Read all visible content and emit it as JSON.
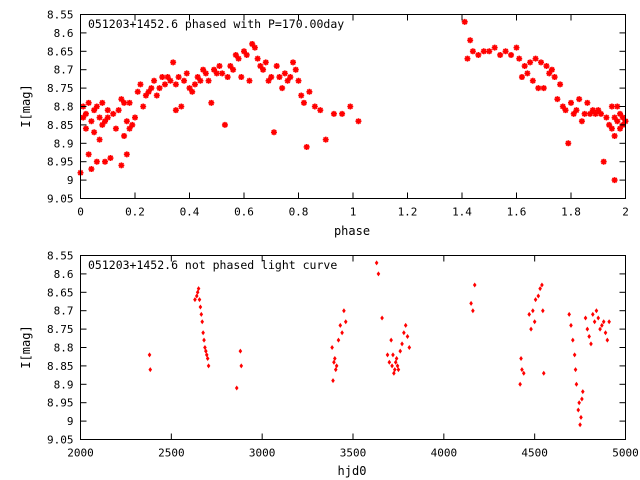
{
  "chart_data": [
    {
      "type": "scatter",
      "title": "051203+1452.6 phased with P=170.00day",
      "xlabel": "phase",
      "ylabel": "I[mag]",
      "xlim": [
        0,
        2
      ],
      "ylim": [
        9.05,
        8.55
      ],
      "y_inverted": true,
      "grid": false,
      "marker_color": "#ff0000",
      "xticks": [
        0,
        0.2,
        0.4,
        0.6,
        0.8,
        1,
        1.2,
        1.4,
        1.6,
        1.8,
        2
      ],
      "xtick_labels": [
        "0",
        "0.2",
        "0.4",
        "0.6",
        "0.8",
        "1",
        "1.2",
        "1.4",
        "1.6",
        "1.8",
        "2"
      ],
      "yticks": [
        8.55,
        8.6,
        8.65,
        8.7,
        8.75,
        8.8,
        8.85,
        8.9,
        8.95,
        9,
        9.05
      ],
      "ytick_labels": [
        "8.55",
        "8.6",
        "8.65",
        "8.7",
        "8.75",
        "8.8",
        "8.85",
        "8.9",
        "8.95",
        "9",
        "9.05"
      ],
      "points": [
        [
          0.0,
          8.98
        ],
        [
          0.01,
          8.8
        ],
        [
          0.01,
          8.83
        ],
        [
          0.02,
          8.86
        ],
        [
          0.02,
          8.82
        ],
        [
          0.03,
          8.93
        ],
        [
          0.03,
          8.79
        ],
        [
          0.04,
          8.84
        ],
        [
          0.04,
          8.97
        ],
        [
          0.05,
          8.81
        ],
        [
          0.05,
          8.87
        ],
        [
          0.06,
          8.95
        ],
        [
          0.06,
          8.8
        ],
        [
          0.07,
          8.83
        ],
        [
          0.07,
          8.89
        ],
        [
          0.08,
          8.85
        ],
        [
          0.08,
          8.79
        ],
        [
          0.09,
          8.84
        ],
        [
          0.09,
          8.95
        ],
        [
          0.1,
          8.83
        ],
        [
          0.1,
          8.81
        ],
        [
          0.11,
          8.94
        ],
        [
          0.12,
          8.82
        ],
        [
          0.13,
          8.86
        ],
        [
          0.14,
          8.81
        ],
        [
          0.15,
          8.96
        ],
        [
          0.15,
          8.78
        ],
        [
          0.16,
          8.88
        ],
        [
          0.16,
          8.79
        ],
        [
          0.17,
          8.93
        ],
        [
          0.17,
          8.84
        ],
        [
          0.18,
          8.86
        ],
        [
          0.18,
          8.79
        ],
        [
          0.19,
          8.85
        ],
        [
          0.2,
          8.83
        ],
        [
          0.21,
          8.76
        ],
        [
          0.22,
          8.74
        ],
        [
          0.23,
          8.8
        ],
        [
          0.24,
          8.77
        ],
        [
          0.25,
          8.76
        ],
        [
          0.26,
          8.75
        ],
        [
          0.27,
          8.73
        ],
        [
          0.28,
          8.77
        ],
        [
          0.29,
          8.75
        ],
        [
          0.3,
          8.72
        ],
        [
          0.31,
          8.74
        ],
        [
          0.32,
          8.72
        ],
        [
          0.33,
          8.73
        ],
        [
          0.34,
          8.68
        ],
        [
          0.35,
          8.74
        ],
        [
          0.35,
          8.81
        ],
        [
          0.36,
          8.72
        ],
        [
          0.37,
          8.8
        ],
        [
          0.38,
          8.73
        ],
        [
          0.39,
          8.71
        ],
        [
          0.4,
          8.75
        ],
        [
          0.41,
          8.76
        ],
        [
          0.42,
          8.74
        ],
        [
          0.43,
          8.72
        ],
        [
          0.44,
          8.73
        ],
        [
          0.45,
          8.7
        ],
        [
          0.46,
          8.71
        ],
        [
          0.47,
          8.73
        ],
        [
          0.48,
          8.79
        ],
        [
          0.49,
          8.7
        ],
        [
          0.5,
          8.71
        ],
        [
          0.51,
          8.69
        ],
        [
          0.52,
          8.71
        ],
        [
          0.53,
          8.85
        ],
        [
          0.54,
          8.72
        ],
        [
          0.55,
          8.69
        ],
        [
          0.56,
          8.7
        ],
        [
          0.57,
          8.66
        ],
        [
          0.58,
          8.67
        ],
        [
          0.59,
          8.72
        ],
        [
          0.6,
          8.65
        ],
        [
          0.61,
          8.66
        ],
        [
          0.62,
          8.73
        ],
        [
          0.63,
          8.63
        ],
        [
          0.64,
          8.64
        ],
        [
          0.65,
          8.67
        ],
        [
          0.66,
          8.69
        ],
        [
          0.67,
          8.7
        ],
        [
          0.68,
          8.68
        ],
        [
          0.69,
          8.73
        ],
        [
          0.7,
          8.72
        ],
        [
          0.71,
          8.87
        ],
        [
          0.72,
          8.69
        ],
        [
          0.73,
          8.72
        ],
        [
          0.74,
          8.75
        ],
        [
          0.75,
          8.71
        ],
        [
          0.76,
          8.73
        ],
        [
          0.77,
          8.72
        ],
        [
          0.78,
          8.68
        ],
        [
          0.79,
          8.7
        ],
        [
          0.8,
          8.73
        ],
        [
          0.81,
          8.77
        ],
        [
          0.82,
          8.79
        ],
        [
          0.83,
          8.91
        ],
        [
          0.84,
          8.76
        ],
        [
          0.86,
          8.8
        ],
        [
          0.88,
          8.81
        ],
        [
          0.9,
          8.89
        ],
        [
          0.93,
          8.82
        ],
        [
          0.96,
          8.82
        ],
        [
          0.99,
          8.8
        ],
        [
          1.02,
          8.84
        ],
        [
          1.41,
          8.57
        ],
        [
          1.42,
          8.67
        ],
        [
          1.43,
          8.62
        ],
        [
          1.44,
          8.65
        ],
        [
          1.46,
          8.66
        ],
        [
          1.48,
          8.65
        ],
        [
          1.5,
          8.65
        ],
        [
          1.52,
          8.64
        ],
        [
          1.54,
          8.66
        ],
        [
          1.56,
          8.65
        ],
        [
          1.58,
          8.66
        ],
        [
          1.6,
          8.64
        ],
        [
          1.61,
          8.67
        ],
        [
          1.62,
          8.72
        ],
        [
          1.63,
          8.69
        ],
        [
          1.64,
          8.71
        ],
        [
          1.65,
          8.68
        ],
        [
          1.66,
          8.73
        ],
        [
          1.67,
          8.67
        ],
        [
          1.68,
          8.75
        ],
        [
          1.69,
          8.68
        ],
        [
          1.7,
          8.75
        ],
        [
          1.71,
          8.69
        ],
        [
          1.72,
          8.71
        ],
        [
          1.73,
          8.7
        ],
        [
          1.74,
          8.72
        ],
        [
          1.75,
          8.78
        ],
        [
          1.76,
          8.74
        ],
        [
          1.77,
          8.8
        ],
        [
          1.78,
          8.81
        ],
        [
          1.79,
          8.9
        ],
        [
          1.8,
          8.79
        ],
        [
          1.81,
          8.82
        ],
        [
          1.82,
          8.81
        ],
        [
          1.83,
          8.78
        ],
        [
          1.84,
          8.84
        ],
        [
          1.85,
          8.82
        ],
        [
          1.86,
          8.79
        ],
        [
          1.87,
          8.82
        ],
        [
          1.88,
          8.81
        ],
        [
          1.89,
          8.82
        ],
        [
          1.9,
          8.81
        ],
        [
          1.91,
          8.82
        ],
        [
          1.92,
          8.95
        ],
        [
          1.93,
          8.83
        ],
        [
          1.94,
          8.85
        ],
        [
          1.95,
          8.8
        ],
        [
          1.95,
          8.86
        ],
        [
          1.96,
          8.83
        ],
        [
          1.96,
          8.88
        ],
        [
          1.96,
          9.0
        ],
        [
          1.97,
          8.84
        ],
        [
          1.97,
          8.8
        ],
        [
          1.98,
          8.86
        ],
        [
          1.98,
          8.82
        ],
        [
          1.99,
          8.83
        ],
        [
          1.99,
          8.85
        ],
        [
          2.0,
          8.84
        ]
      ]
    },
    {
      "type": "scatter",
      "title": "051203+1452.6 not phased light curve",
      "xlabel": "hjd0",
      "ylabel": "I[mag]",
      "xlim": [
        2000,
        5000
      ],
      "ylim": [
        9.05,
        8.55
      ],
      "y_inverted": true,
      "grid": false,
      "marker_color": "#ff0000",
      "xticks": [
        2000,
        2500,
        3000,
        3500,
        4000,
        4500,
        5000
      ],
      "xtick_labels": [
        "2000",
        "2500",
        "3000",
        "3500",
        "4000",
        "4500",
        "5000"
      ],
      "yticks": [
        8.55,
        8.6,
        8.65,
        8.7,
        8.75,
        8.8,
        8.85,
        8.9,
        8.95,
        9,
        9.05
      ],
      "ytick_labels": [
        "8.55",
        "8.6",
        "8.65",
        "8.7",
        "8.75",
        "8.8",
        "8.85",
        "8.9",
        "8.95",
        "9",
        "9.05"
      ],
      "points": [
        [
          2380,
          8.82
        ],
        [
          2384,
          8.86
        ],
        [
          2630,
          8.67
        ],
        [
          2640,
          8.66
        ],
        [
          2645,
          8.65
        ],
        [
          2650,
          8.64
        ],
        [
          2655,
          8.67
        ],
        [
          2660,
          8.69
        ],
        [
          2665,
          8.71
        ],
        [
          2670,
          8.73
        ],
        [
          2675,
          8.76
        ],
        [
          2680,
          8.78
        ],
        [
          2685,
          8.8
        ],
        [
          2690,
          8.81
        ],
        [
          2695,
          8.82
        ],
        [
          2700,
          8.83
        ],
        [
          2705,
          8.85
        ],
        [
          2860,
          8.91
        ],
        [
          2880,
          8.81
        ],
        [
          2885,
          8.85
        ],
        [
          3385,
          8.8
        ],
        [
          3390,
          8.89
        ],
        [
          3395,
          8.84
        ],
        [
          3400,
          8.83
        ],
        [
          3405,
          8.86
        ],
        [
          3410,
          8.85
        ],
        [
          3420,
          8.78
        ],
        [
          3430,
          8.74
        ],
        [
          3440,
          8.76
        ],
        [
          3450,
          8.7
        ],
        [
          3460,
          8.73
        ],
        [
          3630,
          8.57
        ],
        [
          3640,
          8.6
        ],
        [
          3660,
          8.72
        ],
        [
          3690,
          8.82
        ],
        [
          3700,
          8.84
        ],
        [
          3710,
          8.78
        ],
        [
          3715,
          8.85
        ],
        [
          3720,
          8.82
        ],
        [
          3725,
          8.87
        ],
        [
          3730,
          8.86
        ],
        [
          3735,
          8.84
        ],
        [
          3740,
          8.83
        ],
        [
          3745,
          8.85
        ],
        [
          3750,
          8.86
        ],
        [
          3760,
          8.81
        ],
        [
          3770,
          8.79
        ],
        [
          3780,
          8.76
        ],
        [
          3790,
          8.74
        ],
        [
          3800,
          8.77
        ],
        [
          3810,
          8.8
        ],
        [
          4150,
          8.68
        ],
        [
          4160,
          8.7
        ],
        [
          4170,
          8.63
        ],
        [
          4420,
          8.9
        ],
        [
          4425,
          8.83
        ],
        [
          4430,
          8.86
        ],
        [
          4440,
          8.87
        ],
        [
          4470,
          8.71
        ],
        [
          4480,
          8.75
        ],
        [
          4490,
          8.7
        ],
        [
          4500,
          8.73
        ],
        [
          4505,
          8.67
        ],
        [
          4520,
          8.66
        ],
        [
          4530,
          8.64
        ],
        [
          4540,
          8.63
        ],
        [
          4545,
          8.7
        ],
        [
          4550,
          8.87
        ],
        [
          4690,
          8.71
        ],
        [
          4700,
          8.74
        ],
        [
          4710,
          8.78
        ],
        [
          4720,
          8.82
        ],
        [
          4725,
          8.86
        ],
        [
          4730,
          8.9
        ],
        [
          4740,
          8.97
        ],
        [
          4745,
          8.95
        ],
        [
          4750,
          9.01
        ],
        [
          4755,
          8.99
        ],
        [
          4760,
          8.94
        ],
        [
          4765,
          8.92
        ],
        [
          4780,
          8.72
        ],
        [
          4790,
          8.75
        ],
        [
          4800,
          8.77
        ],
        [
          4810,
          8.79
        ],
        [
          4820,
          8.71
        ],
        [
          4830,
          8.73
        ],
        [
          4840,
          8.7
        ],
        [
          4850,
          8.72
        ],
        [
          4860,
          8.75
        ],
        [
          4870,
          8.74
        ],
        [
          4880,
          8.73
        ],
        [
          4890,
          8.76
        ],
        [
          4900,
          8.78
        ],
        [
          4910,
          8.73
        ]
      ]
    }
  ]
}
